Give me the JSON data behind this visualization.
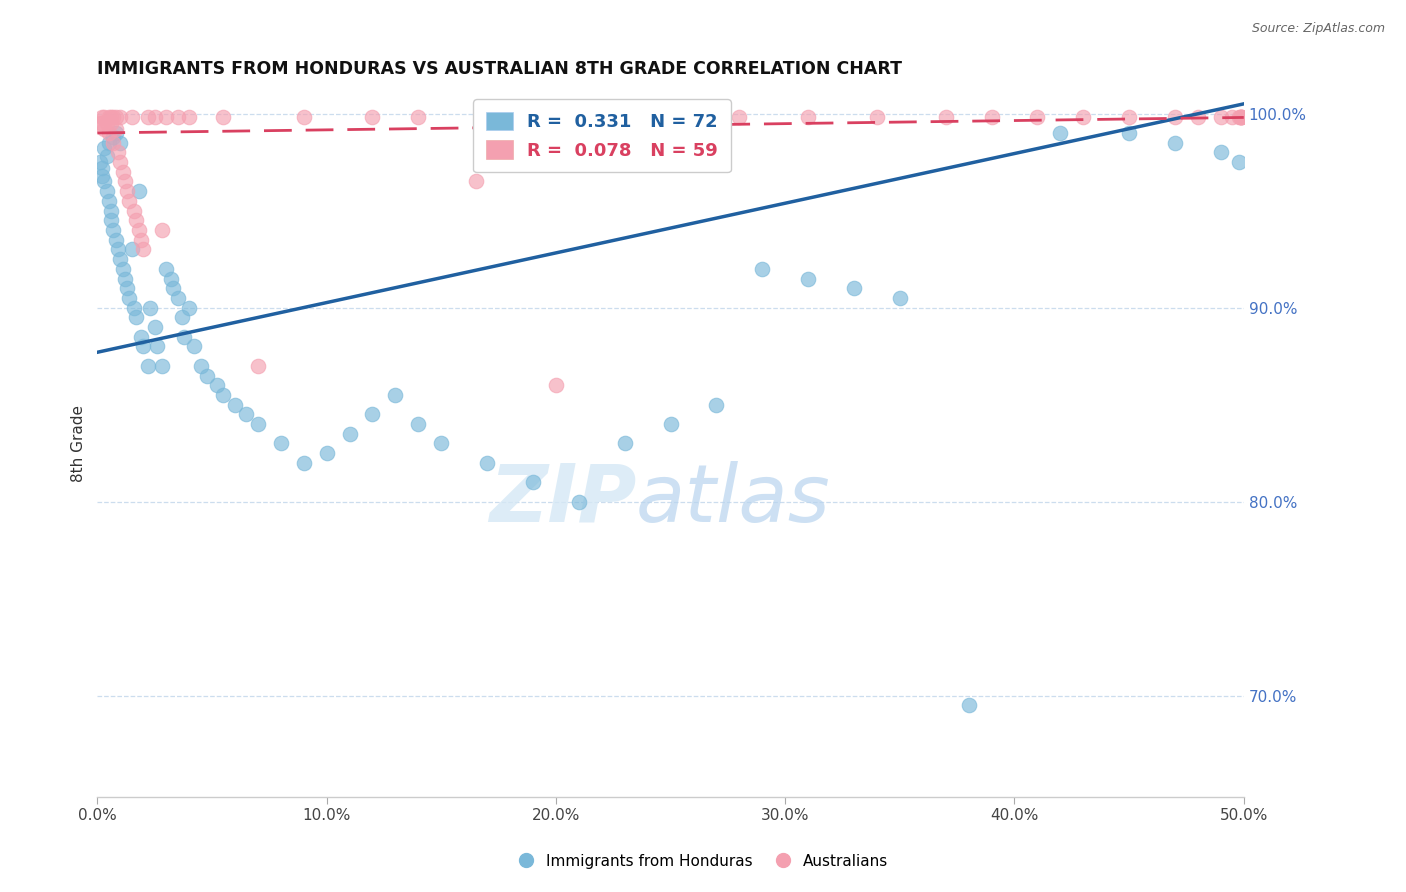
{
  "title": "IMMIGRANTS FROM HONDURAS VS AUSTRALIAN 8TH GRADE CORRELATION CHART",
  "source": "Source: ZipAtlas.com",
  "ylabel": "8th Grade",
  "xlim": [
    0.0,
    0.5
  ],
  "ylim": [
    0.648,
    1.012
  ],
  "xticks": [
    0.0,
    0.1,
    0.2,
    0.3,
    0.4,
    0.5
  ],
  "xtick_labels": [
    "0.0%",
    "10.0%",
    "20.0%",
    "30.0%",
    "40.0%",
    "50.0%"
  ],
  "ytick_vals": [
    0.7,
    0.8,
    0.9,
    1.0
  ],
  "ytick_labels": [
    "70.0%",
    "80.0%",
    "90.0%",
    "100.0%"
  ],
  "blue_R": 0.331,
  "blue_N": 72,
  "pink_R": 0.078,
  "pink_N": 59,
  "blue_color": "#7ab8d9",
  "pink_color": "#f4a0b0",
  "blue_line_color": "#2060a0",
  "pink_line_color": "#d94060",
  "blue_label": "Immigrants from Honduras",
  "pink_label": "Australians",
  "watermark_zip": "ZIP",
  "watermark_atlas": "atlas",
  "blue_line_x": [
    0.0,
    0.5
  ],
  "blue_line_y": [
    0.877,
    1.005
  ],
  "pink_line_x": [
    0.0,
    0.5
  ],
  "pink_line_y": [
    0.99,
    0.998
  ],
  "blue_x": [
    0.001,
    0.002,
    0.002,
    0.003,
    0.003,
    0.004,
    0.004,
    0.005,
    0.005,
    0.006,
    0.006,
    0.007,
    0.007,
    0.008,
    0.008,
    0.009,
    0.01,
    0.01,
    0.011,
    0.012,
    0.013,
    0.014,
    0.015,
    0.016,
    0.017,
    0.018,
    0.019,
    0.02,
    0.022,
    0.023,
    0.025,
    0.026,
    0.028,
    0.03,
    0.032,
    0.033,
    0.035,
    0.037,
    0.038,
    0.04,
    0.042,
    0.045,
    0.048,
    0.052,
    0.055,
    0.06,
    0.065,
    0.07,
    0.08,
    0.09,
    0.1,
    0.11,
    0.12,
    0.13,
    0.14,
    0.15,
    0.17,
    0.19,
    0.21,
    0.23,
    0.25,
    0.27,
    0.29,
    0.31,
    0.33,
    0.35,
    0.38,
    0.42,
    0.45,
    0.47,
    0.49,
    0.498
  ],
  "blue_y": [
    0.975,
    0.972,
    0.968,
    0.965,
    0.982,
    0.978,
    0.96,
    0.955,
    0.985,
    0.95,
    0.945,
    0.988,
    0.94,
    0.935,
    0.99,
    0.93,
    0.985,
    0.925,
    0.92,
    0.915,
    0.91,
    0.905,
    0.93,
    0.9,
    0.895,
    0.96,
    0.885,
    0.88,
    0.87,
    0.9,
    0.89,
    0.88,
    0.87,
    0.92,
    0.915,
    0.91,
    0.905,
    0.895,
    0.885,
    0.9,
    0.88,
    0.87,
    0.865,
    0.86,
    0.855,
    0.85,
    0.845,
    0.84,
    0.83,
    0.82,
    0.825,
    0.835,
    0.845,
    0.855,
    0.84,
    0.83,
    0.82,
    0.81,
    0.8,
    0.83,
    0.84,
    0.85,
    0.92,
    0.915,
    0.91,
    0.905,
    0.695,
    0.99,
    0.99,
    0.985,
    0.98,
    0.975
  ],
  "pink_x": [
    0.001,
    0.002,
    0.002,
    0.003,
    0.003,
    0.004,
    0.005,
    0.005,
    0.006,
    0.006,
    0.007,
    0.007,
    0.008,
    0.008,
    0.009,
    0.01,
    0.01,
    0.011,
    0.012,
    0.013,
    0.014,
    0.015,
    0.016,
    0.017,
    0.018,
    0.019,
    0.02,
    0.022,
    0.025,
    0.028,
    0.03,
    0.035,
    0.04,
    0.055,
    0.07,
    0.09,
    0.12,
    0.14,
    0.165,
    0.2,
    0.24,
    0.28,
    0.31,
    0.34,
    0.37,
    0.39,
    0.41,
    0.43,
    0.45,
    0.47,
    0.48,
    0.49,
    0.495,
    0.498,
    0.499,
    0.499,
    0.499,
    0.499,
    0.499
  ],
  "pink_y": [
    0.995,
    0.995,
    0.998,
    0.998,
    0.992,
    0.995,
    0.998,
    0.99,
    0.998,
    0.995,
    0.998,
    0.985,
    0.998,
    0.992,
    0.98,
    0.998,
    0.975,
    0.97,
    0.965,
    0.96,
    0.955,
    0.998,
    0.95,
    0.945,
    0.94,
    0.935,
    0.93,
    0.998,
    0.998,
    0.94,
    0.998,
    0.998,
    0.998,
    0.998,
    0.87,
    0.998,
    0.998,
    0.998,
    0.965,
    0.86,
    0.998,
    0.998,
    0.998,
    0.998,
    0.998,
    0.998,
    0.998,
    0.998,
    0.998,
    0.998,
    0.998,
    0.998,
    0.998,
    0.998,
    0.998,
    0.998,
    0.998,
    0.998,
    0.998
  ]
}
